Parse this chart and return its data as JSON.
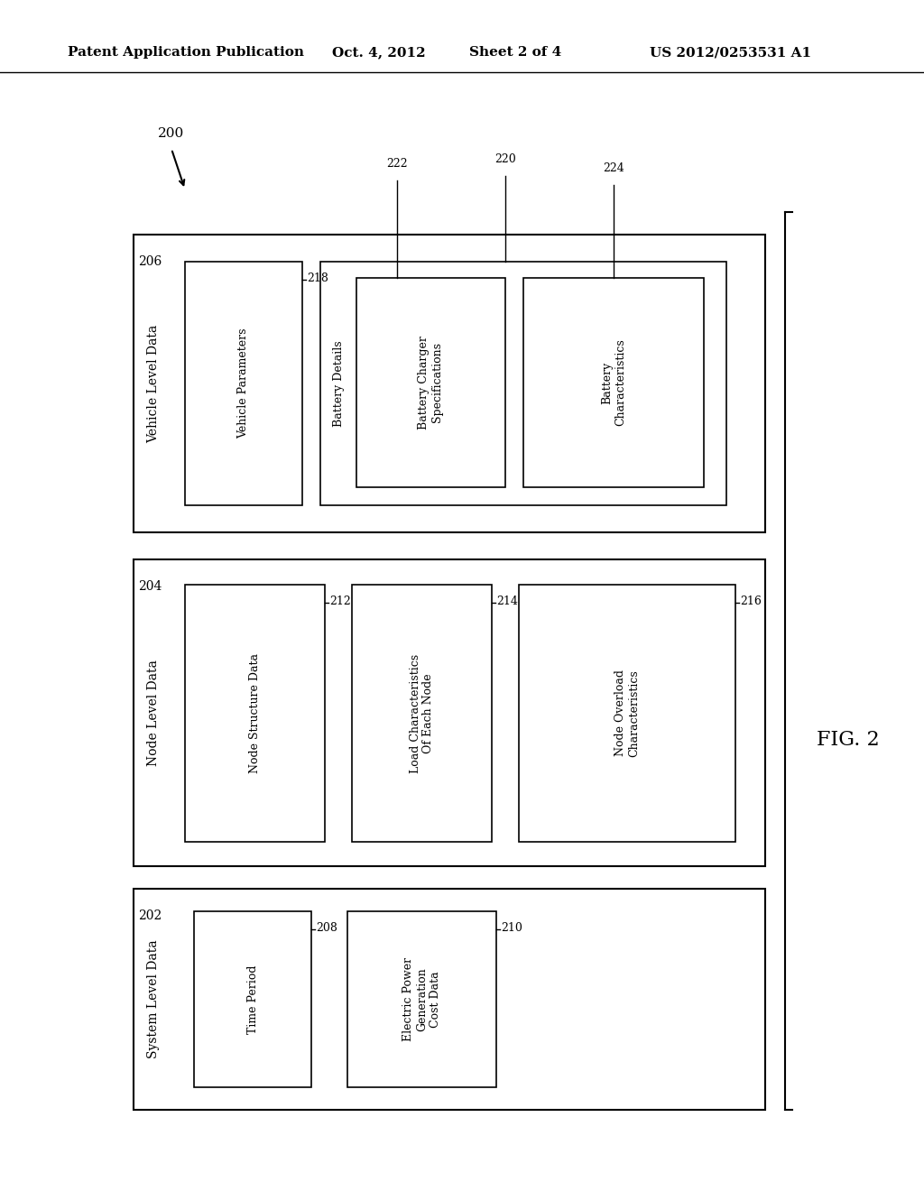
{
  "bg_color": "#ffffff",
  "header_text": "Patent Application Publication",
  "header_date": "Oct. 4, 2012",
  "header_sheet": "Sheet 2 of 4",
  "header_patent": "US 2012/0253531 A1",
  "fig_label": "FIG. 2",
  "ref_200": "200",
  "ref_202": "202",
  "ref_204": "204",
  "ref_206": "206",
  "ref_208": "208",
  "ref_210": "210",
  "ref_212": "212",
  "ref_214": "214",
  "ref_216": "216",
  "ref_218": "218",
  "ref_220": "220",
  "ref_222": "222",
  "ref_224": "224",
  "box202_label": "System Level Data",
  "box204_label": "Node Level Data",
  "box206_label": "Vehicle Level Data",
  "box208_label": "Time Period",
  "box210_label": "Electric Power\nGeneration\nCost Data",
  "box212_label": "Node Structure Data",
  "box214_label": "Load Characteristics\nOf Each Node",
  "box216_label": "Node Overload\nCharacteristics",
  "box218_label": "Vehicle Parameters",
  "box220_label": "Battery Details",
  "box222_label": "Battery Charger\nSpecifications",
  "box224_label": "Battery\nCharacteristics"
}
